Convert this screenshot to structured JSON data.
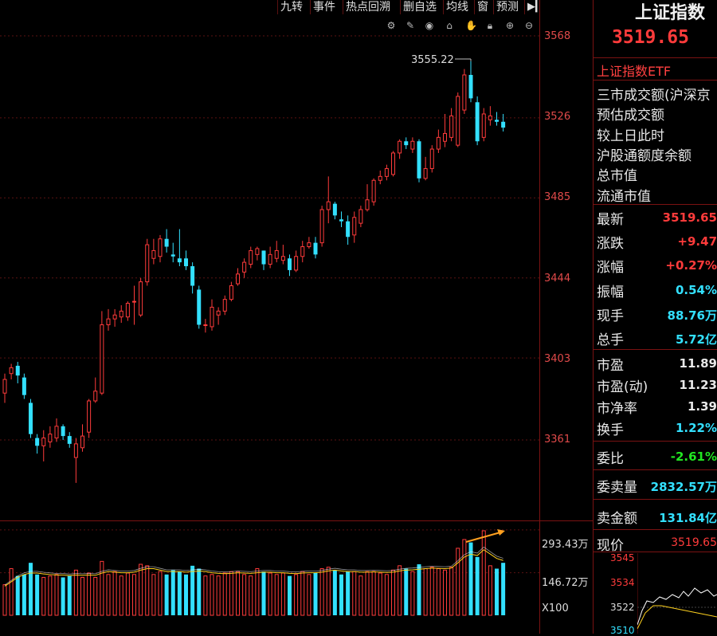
{
  "toolbar": {
    "tabs": [
      "九转",
      "事件",
      "热点回溯",
      "删自选",
      "均线",
      "窗",
      "预测"
    ],
    "collapse_icon": "collapse-right-icon",
    "tools": [
      "settings-icon",
      "draw-pen-icon",
      "eye-icon",
      "basket-icon",
      "hand-icon",
      "lock-icon",
      "zoom-in-icon",
      "zoom-out-icon"
    ]
  },
  "colors": {
    "up": "#ff3b3b",
    "down": "#33e0ff",
    "grid": "#5a1212",
    "ma_yellow": "#ffd21f",
    "ma_white": "#ffffff",
    "arrow": "#ffa020"
  },
  "chart_data": {
    "type": "candlestick",
    "y_ticks": [
      "3568",
      "3526",
      "3485",
      "3444",
      "3403",
      "3361"
    ],
    "ylim": [
      3321,
      3580
    ],
    "annotation_high": "3555.22",
    "candles": [
      {
        "o": 3385,
        "c": 3392,
        "h": 3395,
        "l": 3380
      },
      {
        "o": 3395,
        "c": 3398,
        "h": 3400,
        "l": 3392
      },
      {
        "o": 3399,
        "c": 3394,
        "h": 3401,
        "l": 3390
      },
      {
        "o": 3393,
        "c": 3384,
        "h": 3395,
        "l": 3382
      },
      {
        "o": 3380,
        "c": 3364,
        "h": 3382,
        "l": 3362
      },
      {
        "o": 3362,
        "c": 3358,
        "h": 3364,
        "l": 3354
      },
      {
        "o": 3358,
        "c": 3362,
        "h": 3366,
        "l": 3350
      },
      {
        "o": 3360,
        "c": 3364,
        "h": 3368,
        "l": 3357
      },
      {
        "o": 3362,
        "c": 3368,
        "h": 3372,
        "l": 3360
      },
      {
        "o": 3368,
        "c": 3363,
        "h": 3369,
        "l": 3361
      },
      {
        "o": 3363,
        "c": 3359,
        "h": 3365,
        "l": 3357
      },
      {
        "o": 3352,
        "c": 3359,
        "h": 3362,
        "l": 3339
      },
      {
        "o": 3357,
        "c": 3363,
        "h": 3369,
        "l": 3355
      },
      {
        "o": 3365,
        "c": 3381,
        "h": 3382,
        "l": 3362
      },
      {
        "o": 3381,
        "c": 3386,
        "h": 3393,
        "l": 3380
      },
      {
        "o": 3385,
        "c": 3420,
        "h": 3427,
        "l": 3384
      },
      {
        "o": 3420,
        "c": 3423,
        "h": 3428,
        "l": 3417
      },
      {
        "o": 3423,
        "c": 3425,
        "h": 3428,
        "l": 3419
      },
      {
        "o": 3424,
        "c": 3427,
        "h": 3430,
        "l": 3421
      },
      {
        "o": 3424,
        "c": 3431,
        "h": 3432,
        "l": 3422
      },
      {
        "o": 3432,
        "c": 3432,
        "h": 3440,
        "l": 3420
      },
      {
        "o": 3425,
        "c": 3442,
        "h": 3444,
        "l": 3424
      },
      {
        "o": 3442,
        "c": 3461,
        "h": 3464,
        "l": 3440
      },
      {
        "o": 3454,
        "c": 3458,
        "h": 3464,
        "l": 3451
      },
      {
        "o": 3455,
        "c": 3464,
        "h": 3466,
        "l": 3452
      },
      {
        "o": 3464,
        "c": 3460,
        "h": 3469,
        "l": 3457
      },
      {
        "o": 3456,
        "c": 3455,
        "h": 3462,
        "l": 3452
      },
      {
        "o": 3454,
        "c": 3452,
        "h": 3469,
        "l": 3450
      },
      {
        "o": 3454,
        "c": 3450,
        "h": 3458,
        "l": 3448
      },
      {
        "o": 3450,
        "c": 3440,
        "h": 3452,
        "l": 3436
      },
      {
        "o": 3438,
        "c": 3420,
        "h": 3440,
        "l": 3418
      },
      {
        "o": 3420,
        "c": 3420,
        "h": 3423,
        "l": 3416
      },
      {
        "o": 3419,
        "c": 3429,
        "h": 3433,
        "l": 3417
      },
      {
        "o": 3425,
        "c": 3427,
        "h": 3429,
        "l": 3420
      },
      {
        "o": 3427,
        "c": 3433,
        "h": 3435,
        "l": 3425
      },
      {
        "o": 3433,
        "c": 3440,
        "h": 3442,
        "l": 3432
      },
      {
        "o": 3441,
        "c": 3446,
        "h": 3449,
        "l": 3440
      },
      {
        "o": 3447,
        "c": 3452,
        "h": 3454,
        "l": 3444
      },
      {
        "o": 3451,
        "c": 3458,
        "h": 3460,
        "l": 3449
      },
      {
        "o": 3456,
        "c": 3459,
        "h": 3460,
        "l": 3453
      },
      {
        "o": 3458,
        "c": 3451,
        "h": 3458,
        "l": 3448
      },
      {
        "o": 3451,
        "c": 3456,
        "h": 3460,
        "l": 3449
      },
      {
        "o": 3454,
        "c": 3458,
        "h": 3463,
        "l": 3452
      },
      {
        "o": 3453,
        "c": 3455,
        "h": 3461,
        "l": 3451
      },
      {
        "o": 3454,
        "c": 3448,
        "h": 3456,
        "l": 3445
      },
      {
        "o": 3448,
        "c": 3455,
        "h": 3458,
        "l": 3447
      },
      {
        "o": 3455,
        "c": 3460,
        "h": 3463,
        "l": 3452
      },
      {
        "o": 3460,
        "c": 3462,
        "h": 3465,
        "l": 3459
      },
      {
        "o": 3462,
        "c": 3456,
        "h": 3465,
        "l": 3454
      },
      {
        "o": 3462,
        "c": 3479,
        "h": 3481,
        "l": 3460
      },
      {
        "o": 3479,
        "c": 3483,
        "h": 3496,
        "l": 3472
      },
      {
        "o": 3482,
        "c": 3476,
        "h": 3483,
        "l": 3474
      },
      {
        "o": 3474,
        "c": 3473,
        "h": 3478,
        "l": 3470
      },
      {
        "o": 3473,
        "c": 3465,
        "h": 3476,
        "l": 3461
      },
      {
        "o": 3466,
        "c": 3475,
        "h": 3478,
        "l": 3462
      },
      {
        "o": 3472,
        "c": 3479,
        "h": 3481,
        "l": 3470
      },
      {
        "o": 3479,
        "c": 3484,
        "h": 3492,
        "l": 3478
      },
      {
        "o": 3483,
        "c": 3494,
        "h": 3495,
        "l": 3481
      },
      {
        "o": 3494,
        "c": 3496,
        "h": 3499,
        "l": 3492
      },
      {
        "o": 3496,
        "c": 3500,
        "h": 3502,
        "l": 3494
      },
      {
        "o": 3497,
        "c": 3508,
        "h": 3509,
        "l": 3496
      },
      {
        "o": 3508,
        "c": 3514,
        "h": 3515,
        "l": 3505
      },
      {
        "o": 3514,
        "c": 3512,
        "h": 3516,
        "l": 3510
      },
      {
        "o": 3510,
        "c": 3514,
        "h": 3516,
        "l": 3508
      },
      {
        "o": 3514,
        "c": 3495,
        "h": 3515,
        "l": 3493
      },
      {
        "o": 3495,
        "c": 3500,
        "h": 3506,
        "l": 3494
      },
      {
        "o": 3500,
        "c": 3510,
        "h": 3512,
        "l": 3498
      },
      {
        "o": 3510,
        "c": 3516,
        "h": 3520,
        "l": 3508
      },
      {
        "o": 3514,
        "c": 3518,
        "h": 3528,
        "l": 3511
      },
      {
        "o": 3516,
        "c": 3527,
        "h": 3531,
        "l": 3514
      },
      {
        "o": 3512,
        "c": 3537,
        "h": 3539,
        "l": 3511
      },
      {
        "o": 3530,
        "c": 3548,
        "h": 3551,
        "l": 3528
      },
      {
        "o": 3548,
        "c": 3536,
        "h": 3555,
        "l": 3534
      },
      {
        "o": 3534,
        "c": 3514,
        "h": 3537,
        "l": 3512
      },
      {
        "o": 3516,
        "c": 3528,
        "h": 3531,
        "l": 3514
      },
      {
        "o": 3525,
        "c": 3527,
        "h": 3532,
        "l": 3522
      },
      {
        "o": 3525,
        "c": 3524,
        "h": 3529,
        "l": 3522
      },
      {
        "o": 3524,
        "c": 3521,
        "h": 3528,
        "l": 3519
      }
    ],
    "volumes": [
      105,
      160,
      135,
      140,
      180,
      140,
      130,
      135,
      140,
      130,
      135,
      155,
      130,
      145,
      130,
      185,
      140,
      150,
      135,
      145,
      140,
      175,
      170,
      140,
      150,
      140,
      155,
      150,
      140,
      170,
      160,
      135,
      140,
      135,
      145,
      150,
      150,
      140,
      135,
      160,
      150,
      145,
      140,
      145,
      135,
      140,
      150,
      140,
      145,
      160,
      165,
      155,
      140,
      150,
      150,
      135,
      150,
      150,
      145,
      140,
      155,
      170,
      160,
      150,
      175,
      160,
      165,
      160,
      155,
      165,
      230,
      260,
      250,
      200,
      290,
      170,
      160,
      180
    ],
    "ma_volume": [
      100,
      115,
      130,
      140,
      145,
      145,
      142,
      140,
      138,
      138,
      136,
      138,
      137,
      138,
      137,
      145,
      150,
      148,
      146,
      146,
      148,
      155,
      160,
      160,
      155,
      150,
      150,
      150,
      148,
      150,
      152,
      150,
      146,
      144,
      143,
      144,
      146,
      145,
      144,
      146,
      148,
      148,
      146,
      146,
      144,
      143,
      145,
      146,
      146,
      148,
      152,
      155,
      152,
      150,
      150,
      148,
      148,
      149,
      148,
      147,
      148,
      152,
      155,
      156,
      158,
      160,
      162,
      161,
      160,
      162,
      180,
      200,
      210,
      205,
      225,
      210,
      195,
      188
    ],
    "volume_ticks": [
      "293.43万",
      "146.72万",
      "X100"
    ],
    "volume_ylim": [
      0,
      320
    ]
  },
  "sidebar": {
    "title": "上证指数",
    "price": "3519.65",
    "etf_label": "上证指数ETF",
    "info_labels": [
      "三市成交额(沪深京",
      "预估成交额",
      "较上日此时",
      "沪股通额度余额",
      "总市值",
      "流通市值"
    ],
    "stats": [
      {
        "label": "最新",
        "value": "3519.65",
        "color": "red"
      },
      {
        "label": "涨跌",
        "value": "+9.47",
        "color": "red"
      },
      {
        "label": "涨幅",
        "value": "+0.27%",
        "color": "red"
      },
      {
        "label": "振幅",
        "value": "0.54%",
        "color": "cyan"
      },
      {
        "label": "现手",
        "value": "88.76万",
        "color": "cyan"
      },
      {
        "label": "总手",
        "value": "5.72亿",
        "color": "cyan"
      }
    ],
    "ratios": [
      {
        "label": "市盈",
        "value": "11.89",
        "color": "white"
      },
      {
        "label": "市盈(动)",
        "value": "11.23",
        "color": "white"
      },
      {
        "label": "市净率",
        "value": "1.39",
        "color": "white"
      },
      {
        "label": "换手",
        "value": "1.22%",
        "color": "cyan"
      }
    ],
    "weibi_label": "委比",
    "weibi_value": "-2.61%",
    "weimai_label": "委卖量",
    "weimai_value": "2832.57万",
    "maijin_label": "卖金额",
    "maijin_value": "131.84亿",
    "mini": {
      "label": "现价",
      "price": "3519.65",
      "ticks": [
        "3545",
        "3534",
        "3522",
        "3510"
      ]
    }
  }
}
